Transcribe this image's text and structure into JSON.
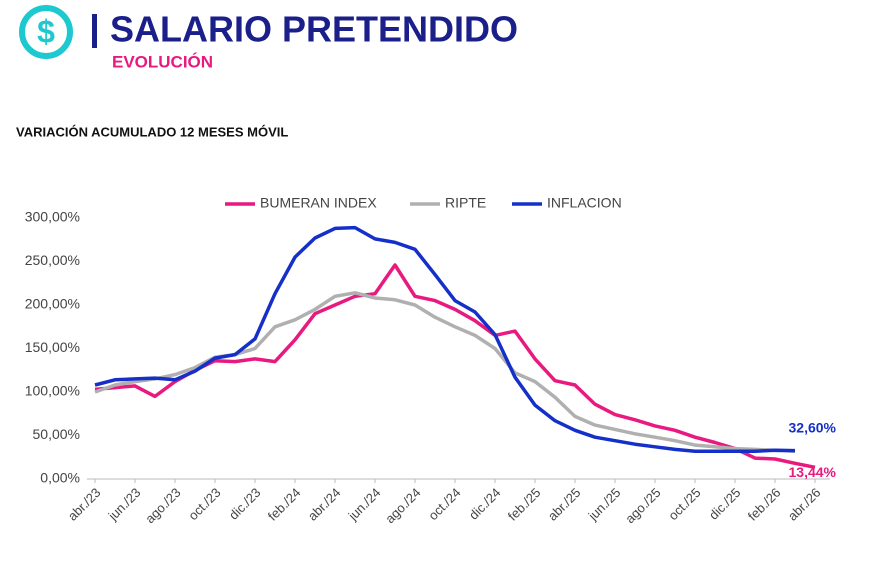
{
  "header": {
    "title": "SALARIO PRETENDIDO",
    "subtitle": "EVOLUCIÓN"
  },
  "chart_data": {
    "type": "line",
    "title": "VARIACIÓN ACUMULADO 12 MESES MÓVIL",
    "categories": [
      "abr./23",
      null,
      "jun./23",
      null,
      "ago./23",
      null,
      "oct./23",
      null,
      "dic./23",
      null,
      "feb./24",
      null,
      "abr./24",
      null,
      "jun./24",
      null,
      "ago./24",
      null,
      "oct./24",
      null,
      "dic./24",
      null,
      "feb./25",
      null,
      "abr./25",
      null,
      "jun./25",
      null,
      "ago./25",
      null,
      "oct./25",
      null,
      "dic./25",
      null,
      "feb./26",
      null,
      "abr./26"
    ],
    "series": [
      {
        "name": "BUMERAN INDEX",
        "color": "#e8197f",
        "values": [
          103,
          105,
          107,
          95,
          112,
          125,
          136,
          135,
          138,
          135,
          160,
          190,
          200,
          210,
          213,
          246,
          210,
          205,
          195,
          182,
          165,
          170,
          138,
          113,
          108,
          86,
          74,
          68,
          61,
          56,
          48,
          42,
          35,
          24,
          23,
          18,
          13.44
        ]
      },
      {
        "name": "RIPTE",
        "color": "#b0b0b0",
        "values": [
          100,
          108,
          112,
          115,
          120,
          128,
          140,
          143,
          150,
          175,
          183,
          195,
          210,
          214,
          208,
          206,
          200,
          186,
          175,
          165,
          150,
          122,
          112,
          94,
          72,
          62,
          57,
          52,
          48,
          44,
          39,
          37,
          35,
          34,
          33,
          32,
          null
        ]
      },
      {
        "name": "INFLACION",
        "color": "#1530c8",
        "values": [
          108,
          114,
          115,
          116,
          114,
          124,
          139,
          143,
          161,
          213,
          255,
          277,
          288,
          289,
          276,
          272,
          264,
          235,
          205,
          192,
          166,
          117,
          85,
          67,
          56,
          48,
          44,
          40,
          37,
          34,
          32,
          32,
          32,
          32,
          33,
          32.6,
          null
        ]
      }
    ],
    "ylim": [
      0,
      300
    ],
    "yticks": [
      {
        "value": 0,
        "label": "0,00%"
      },
      {
        "value": 50,
        "label": "50,00%"
      },
      {
        "value": 100,
        "label": "100,00%"
      },
      {
        "value": 150,
        "label": "150,00%"
      },
      {
        "value": 200,
        "label": "200,00%"
      },
      {
        "value": 250,
        "label": "250,00%"
      },
      {
        "value": 300,
        "label": "300,00%"
      }
    ],
    "grid": false,
    "legend": "top",
    "annotations": [
      {
        "text": "32,60%",
        "series": 2,
        "color": "#1530c8"
      },
      {
        "text": "13,44%",
        "series": 0,
        "color": "#e8197f"
      }
    ]
  }
}
